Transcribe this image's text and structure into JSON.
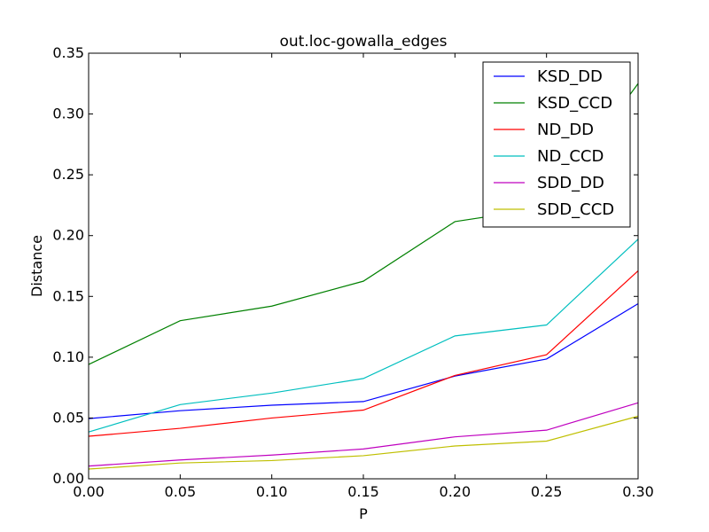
{
  "chart_data": {
    "type": "line",
    "title": "out.loc-gowalla_edges",
    "xlabel": "P",
    "ylabel": "Distance",
    "xlim": [
      0.0,
      0.3
    ],
    "ylim": [
      0.0,
      0.35
    ],
    "x": [
      0.0,
      0.05,
      0.1,
      0.15,
      0.2,
      0.25,
      0.3
    ],
    "x_ticks": [
      "0.00",
      "0.05",
      "0.10",
      "0.15",
      "0.20",
      "0.25",
      "0.30"
    ],
    "y_ticks": [
      0.0,
      0.05,
      0.1,
      0.15,
      0.2,
      0.25,
      0.3,
      0.35
    ],
    "y_tick_labels": [
      "0.00",
      "0.05",
      "0.10",
      "0.15",
      "0.20",
      "0.25",
      "0.30",
      "0.35"
    ],
    "grid": false,
    "legend_position": "top-right",
    "series": [
      {
        "name": "KSD_DD",
        "color": "#0000ff",
        "values": [
          0.0495,
          0.056,
          0.0605,
          0.0635,
          0.0845,
          0.0985,
          0.144
        ]
      },
      {
        "name": "KSD_CCD",
        "color": "#008000",
        "values": [
          0.094,
          0.13,
          0.142,
          0.1625,
          0.2115,
          0.223,
          0.325
        ]
      },
      {
        "name": "ND_DD",
        "color": "#ff0000",
        "values": [
          0.035,
          0.0415,
          0.05,
          0.0565,
          0.085,
          0.102,
          0.171
        ]
      },
      {
        "name": "ND_CCD",
        "color": "#00bfbf",
        "values": [
          0.0385,
          0.061,
          0.0705,
          0.0825,
          0.1175,
          0.1265,
          0.197
        ]
      },
      {
        "name": "SDD_DD",
        "color": "#bf00bf",
        "values": [
          0.0105,
          0.0155,
          0.0195,
          0.0245,
          0.0345,
          0.04,
          0.0625
        ]
      },
      {
        "name": "SDD_CCD",
        "color": "#bfbf00",
        "values": [
          0.008,
          0.013,
          0.015,
          0.019,
          0.027,
          0.031,
          0.0515
        ]
      }
    ]
  }
}
